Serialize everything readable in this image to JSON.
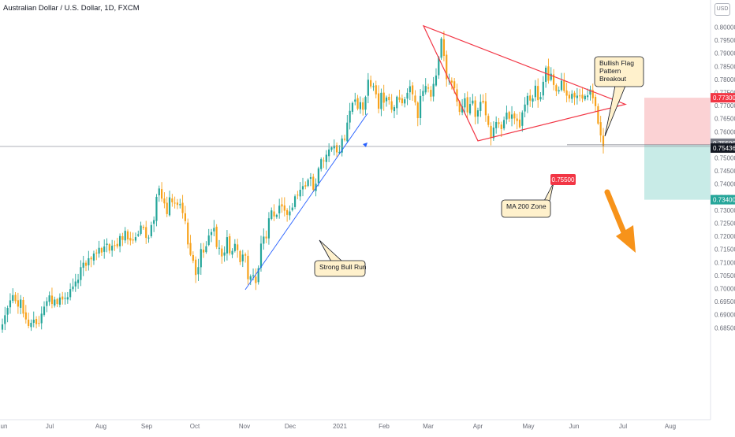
{
  "header": {
    "title": "Australian Dollar / U.S. Dollar, 1D, FXCM",
    "currency": "USD"
  },
  "chart_data": {
    "type": "candlestick",
    "ylim": [
      0.6835,
      0.8035
    ],
    "y_ticks": [
      "0.80000",
      "0.79500",
      "0.79000",
      "0.78500",
      "0.78000",
      "0.77500",
      "0.77000",
      "0.76500",
      "0.76000",
      "0.75500",
      "0.75000",
      "0.74500",
      "0.74000",
      "0.73500",
      "0.73000",
      "0.72500",
      "0.72000",
      "0.71500",
      "0.71000",
      "0.70500",
      "0.70000",
      "0.69500",
      "0.69000",
      "0.68500"
    ],
    "x_ticks": [
      "Jun",
      "Jul",
      "Aug",
      "Sep",
      "Oct",
      "Nov",
      "Dec",
      "2021",
      "Feb",
      "Mar",
      "Apr",
      "May",
      "Jun",
      "Jul",
      "Aug"
    ],
    "colors": {
      "up": "#26a69a",
      "down": "#f7a21b",
      "triangle": "#f23645",
      "trend": "#2962ff",
      "arrow": "#f7931a",
      "stop_zone": "#fbd2d4",
      "target_zone": "#c8ebe7"
    },
    "price_labels": [
      {
        "text": "0.77300",
        "color": "#f23645"
      },
      {
        "text": "0.75500",
        "color": "#787b86"
      },
      {
        "text": "0.75436",
        "color": "#131722"
      },
      {
        "text": "0.73400",
        "color": "#26a69a"
      }
    ],
    "level_label": "0.75500",
    "annotations": [
      {
        "text": "Bullish Flag\nPattern\nBreakout"
      },
      {
        "text": "MA 200 Zone"
      },
      {
        "text": "Strong Bull Run"
      }
    ],
    "trade_levels": {
      "stop": 0.773,
      "entry": 0.755,
      "target": 0.734,
      "last": 0.75436
    },
    "trend_line": {
      "from": {
        "x": "Nov 2",
        "y": 0.6996
      },
      "to": {
        "x": "Jan 26",
        "y": 0.767
      }
    },
    "triangle": [
      {
        "x": "Feb 25",
        "y": 0.8005
      },
      {
        "x": "Jul 1",
        "y": 0.7705
      },
      {
        "x": "Mar 31",
        "y": 0.7565
      }
    ],
    "series_ohlc": [
      {
        "name": "AUDUSD",
        "close": [
          0.6863,
          0.6898,
          0.6926,
          0.6955,
          0.6975,
          0.6952,
          0.6931,
          0.6958,
          0.6904,
          0.6882,
          0.6857,
          0.6869,
          0.6881,
          0.6864,
          0.6867,
          0.6904,
          0.6931,
          0.6952,
          0.6974,
          0.6941,
          0.6958,
          0.6941,
          0.6966,
          0.6958,
          0.6964,
          0.6967,
          0.6998,
          0.7008,
          0.7027,
          0.7034,
          0.7082,
          0.7099,
          0.7087,
          0.7116,
          0.7112,
          0.7134,
          0.7137,
          0.7156,
          0.7138,
          0.7161,
          0.7172,
          0.7145,
          0.7164,
          0.7166,
          0.7161,
          0.7201,
          0.7186,
          0.7221,
          0.7188,
          0.7184,
          0.7184,
          0.7197,
          0.7208,
          0.7241,
          0.7232,
          0.7194,
          0.7195,
          0.7243,
          0.7262,
          0.7351,
          0.7383,
          0.7344,
          0.7326,
          0.7285,
          0.7349,
          0.733,
          0.7328,
          0.732,
          0.7323,
          0.7289,
          0.7258,
          0.7169,
          0.7129,
          0.7106,
          0.7052,
          0.7082,
          0.7151,
          0.7138,
          0.7162,
          0.7203,
          0.7216,
          0.7232,
          0.7159,
          0.7156,
          0.7123,
          0.7138,
          0.7197,
          0.7135,
          0.7144,
          0.7171,
          0.7147,
          0.7101,
          0.713,
          0.7126,
          0.7036,
          0.7047,
          0.7051,
          0.7021,
          0.7078,
          0.7172,
          0.7199,
          0.7192,
          0.7269,
          0.7299,
          0.7276,
          0.7282,
          0.7317,
          0.7314,
          0.7298,
          0.7282,
          0.7295,
          0.731,
          0.7353,
          0.7358,
          0.7378,
          0.7392,
          0.739,
          0.7416,
          0.7426,
          0.7378,
          0.7401,
          0.746,
          0.7495,
          0.7489,
          0.7512,
          0.7532,
          0.754,
          0.7547,
          0.7521,
          0.7523,
          0.7574,
          0.7569,
          0.7635,
          0.768,
          0.771,
          0.7723,
          0.7688,
          0.7713,
          0.7684,
          0.7733,
          0.7799,
          0.7773,
          0.7774,
          0.7743,
          0.7688,
          0.7749,
          0.7711,
          0.7731,
          0.7721,
          0.7684,
          0.7694,
          0.7734,
          0.7722,
          0.7709,
          0.7724,
          0.7749,
          0.7774,
          0.7743,
          0.7712,
          0.7652,
          0.7737,
          0.7756,
          0.7775,
          0.7765,
          0.7734,
          0.7783,
          0.7815,
          0.7885,
          0.7956,
          0.789,
          0.7801,
          0.7796,
          0.7788,
          0.7766,
          0.7715,
          0.7676,
          0.7697,
          0.7728,
          0.7674,
          0.7706,
          0.7719,
          0.7657,
          0.7682,
          0.7714,
          0.7712,
          0.7663,
          0.7626,
          0.7577,
          0.7616,
          0.7637,
          0.763,
          0.761,
          0.7645,
          0.7673,
          0.765,
          0.7666,
          0.7651,
          0.7641,
          0.7617,
          0.7674,
          0.7704,
          0.7737,
          0.7719,
          0.7727,
          0.7776,
          0.7721,
          0.7733,
          0.7791,
          0.7845,
          0.7795,
          0.7822,
          0.7779,
          0.7755,
          0.7759,
          0.7795,
          0.7756,
          0.7738,
          0.7727,
          0.7745,
          0.7732,
          0.7738,
          0.7736,
          0.7727,
          0.7737,
          0.7739,
          0.7762,
          0.7728,
          0.7698,
          0.7631,
          0.7586,
          0.7544
        ]
      }
    ]
  }
}
